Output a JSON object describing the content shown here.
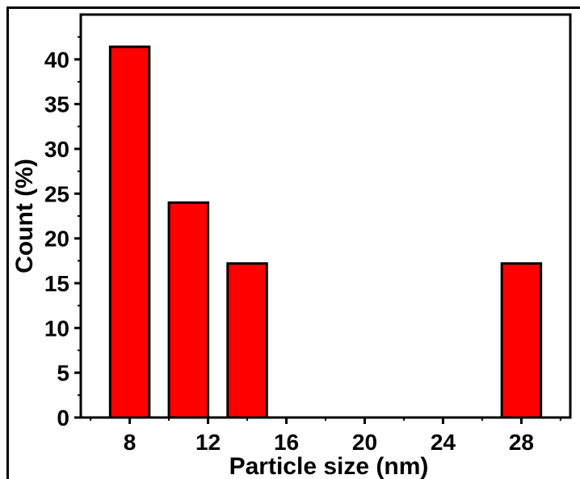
{
  "chart_data": {
    "type": "bar",
    "title": "",
    "xlabel": "Particle size (nm)",
    "ylabel": "Count (%)",
    "x": [
      8,
      11,
      14,
      28
    ],
    "values": [
      41.4,
      24.0,
      17.2,
      17.2
    ],
    "bar_width": 2,
    "xlim": [
      5.5,
      30.5
    ],
    "ylim": [
      0,
      45
    ],
    "x_ticks": [
      8,
      12,
      16,
      20,
      24,
      28
    ],
    "x_tick_labels": [
      "8",
      "12",
      "16",
      "20",
      "24",
      "28"
    ],
    "y_ticks": [
      0,
      5,
      10,
      15,
      20,
      25,
      30,
      35,
      40
    ],
    "y_tick_labels": [
      "0",
      "5",
      "10",
      "15",
      "20",
      "25",
      "30",
      "35",
      "40"
    ],
    "grid": false,
    "legend": "none",
    "bar_color": "#ff0000",
    "edge_color": "#000000"
  }
}
